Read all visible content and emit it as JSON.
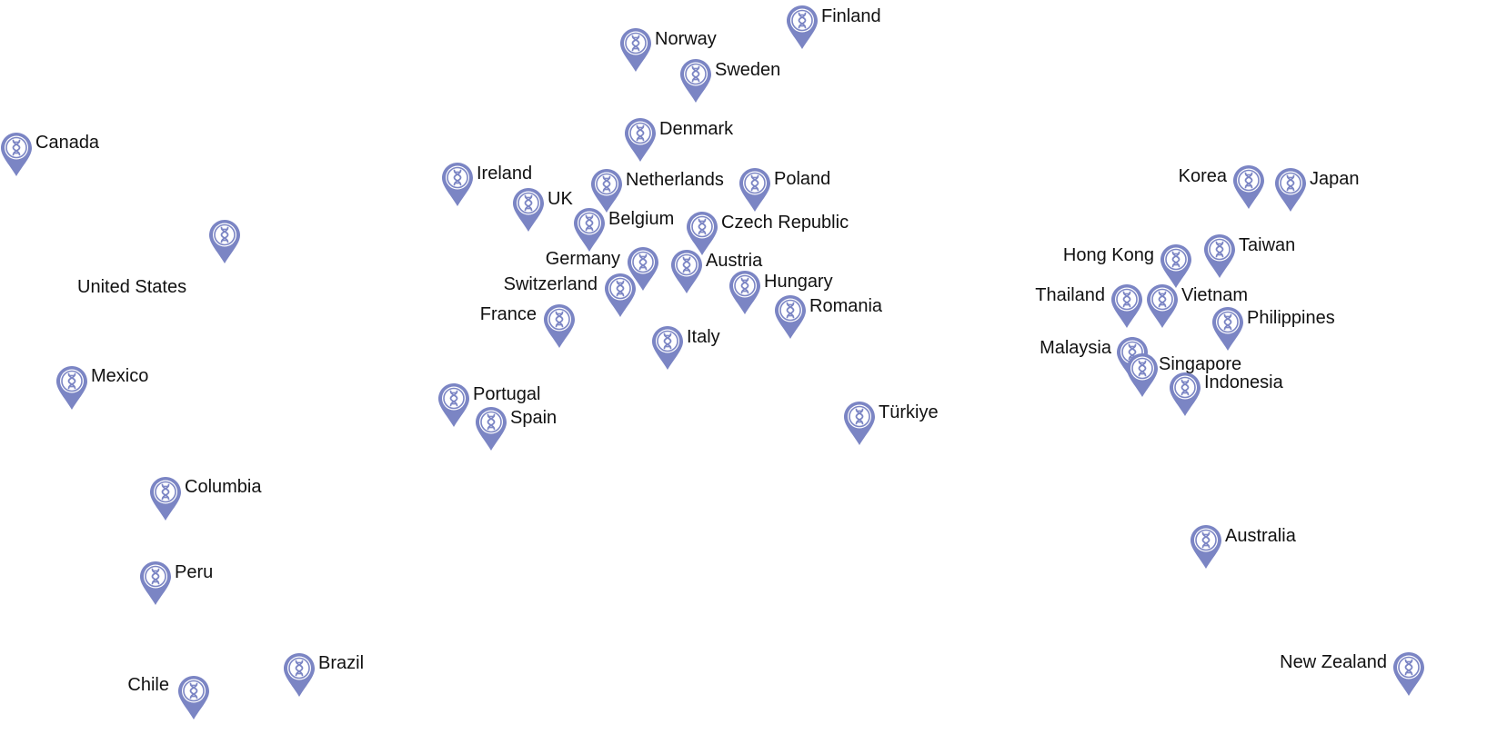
{
  "colors": {
    "pin": "#7b85c4",
    "pin_fill": "#ffffff",
    "label": "#111111"
  },
  "icon": "dna-location-pin-icon",
  "locations": [
    {
      "id": "canada",
      "name": "Canada"
    },
    {
      "id": "united-states",
      "name": "United States"
    },
    {
      "id": "mexico",
      "name": "Mexico"
    },
    {
      "id": "columbia",
      "name": "Columbia"
    },
    {
      "id": "peru",
      "name": "Peru"
    },
    {
      "id": "chile",
      "name": "Chile"
    },
    {
      "id": "brazil",
      "name": "Brazil"
    },
    {
      "id": "norway",
      "name": "Norway"
    },
    {
      "id": "finland",
      "name": "Finland"
    },
    {
      "id": "sweden",
      "name": "Sweden"
    },
    {
      "id": "denmark",
      "name": "Denmark"
    },
    {
      "id": "ireland",
      "name": "Ireland"
    },
    {
      "id": "uk",
      "name": "UK"
    },
    {
      "id": "netherlands",
      "name": "Netherlands"
    },
    {
      "id": "poland",
      "name": "Poland"
    },
    {
      "id": "belgium",
      "name": "Belgium"
    },
    {
      "id": "czech-republic",
      "name": "Czech Republic"
    },
    {
      "id": "germany",
      "name": "Germany"
    },
    {
      "id": "austria",
      "name": "Austria"
    },
    {
      "id": "switzerland",
      "name": "Switzerland"
    },
    {
      "id": "hungary",
      "name": "Hungary"
    },
    {
      "id": "france",
      "name": "France"
    },
    {
      "id": "romania",
      "name": "Romania"
    },
    {
      "id": "italy",
      "name": "Italy"
    },
    {
      "id": "portugal",
      "name": "Portugal"
    },
    {
      "id": "spain",
      "name": "Spain"
    },
    {
      "id": "turkiye",
      "name": "Türkiye"
    },
    {
      "id": "korea",
      "name": "Korea"
    },
    {
      "id": "japan",
      "name": "Japan"
    },
    {
      "id": "hong-kong",
      "name": "Hong Kong"
    },
    {
      "id": "taiwan",
      "name": "Taiwan"
    },
    {
      "id": "thailand",
      "name": "Thailand"
    },
    {
      "id": "vietnam",
      "name": "Vietnam"
    },
    {
      "id": "philippines",
      "name": "Philippines"
    },
    {
      "id": "malaysia",
      "name": "Malaysia"
    },
    {
      "id": "singapore",
      "name": "Singapore"
    },
    {
      "id": "indonesia",
      "name": "Indonesia"
    },
    {
      "id": "australia",
      "name": "Australia"
    },
    {
      "id": "new-zealand",
      "name": "New Zealand"
    }
  ]
}
